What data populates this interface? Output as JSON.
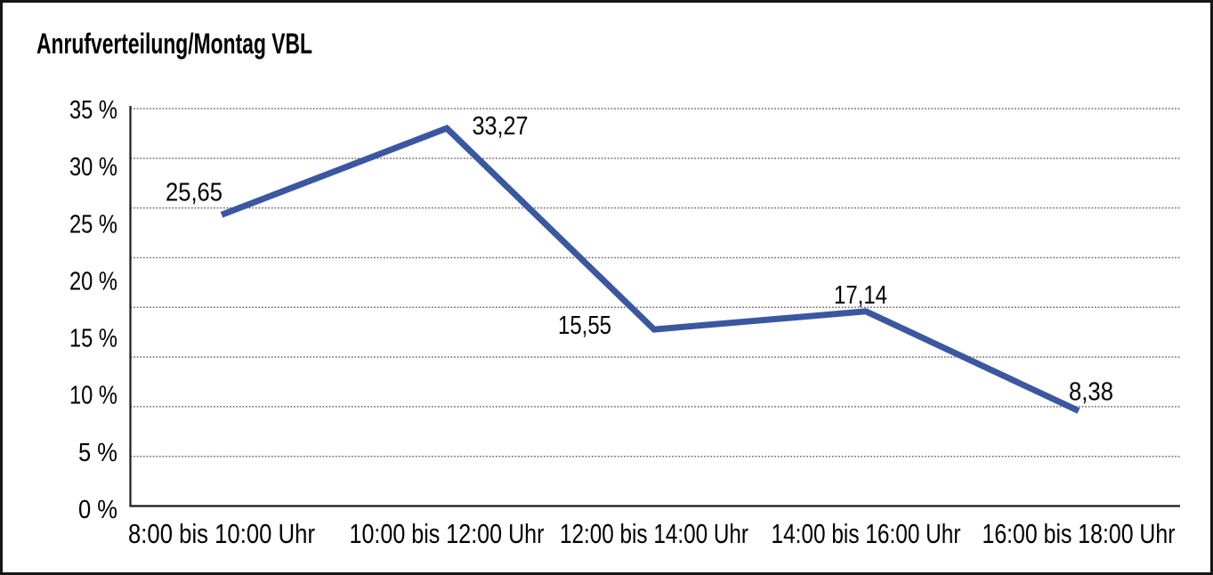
{
  "title": "Anrufverteilung/Montag VBL",
  "chart_data": {
    "type": "line",
    "title": "Anrufverteilung/Montag VBL",
    "categories": [
      "8:00 bis 10:00 Uhr",
      "10:00 bis 12:00 Uhr",
      "12:00 bis 14:00 Uhr",
      "14:00 bis 16:00 Uhr",
      "16:00 bis 18:00 Uhr"
    ],
    "series": [
      {
        "name": "Anrufverteilung Montag VBL",
        "values": [
          25.65,
          33.27,
          15.55,
          17.14,
          8.38
        ],
        "value_labels": [
          "25,65",
          "33,27",
          "15,55",
          "17,14",
          "8,38"
        ]
      }
    ],
    "xlabel": "",
    "ylabel": "",
    "ylim": [
      0,
      35
    ],
    "y_tick_labels": [
      "35 %",
      "30 %",
      "25 %",
      "20 %",
      "15 %",
      "10 %",
      "5 %",
      "0 %"
    ],
    "y_tick_values": [
      35,
      30,
      25,
      20,
      15,
      10,
      5,
      0
    ],
    "grid": "horizontal-dotted, 8 equal intervals",
    "legend": "none",
    "colors": {
      "line": "#3A57A0",
      "text": "#000000",
      "grid": "#707070",
      "axis": "#1a1a1a",
      "background": "#ffffff",
      "frame_border": "#161616"
    }
  }
}
